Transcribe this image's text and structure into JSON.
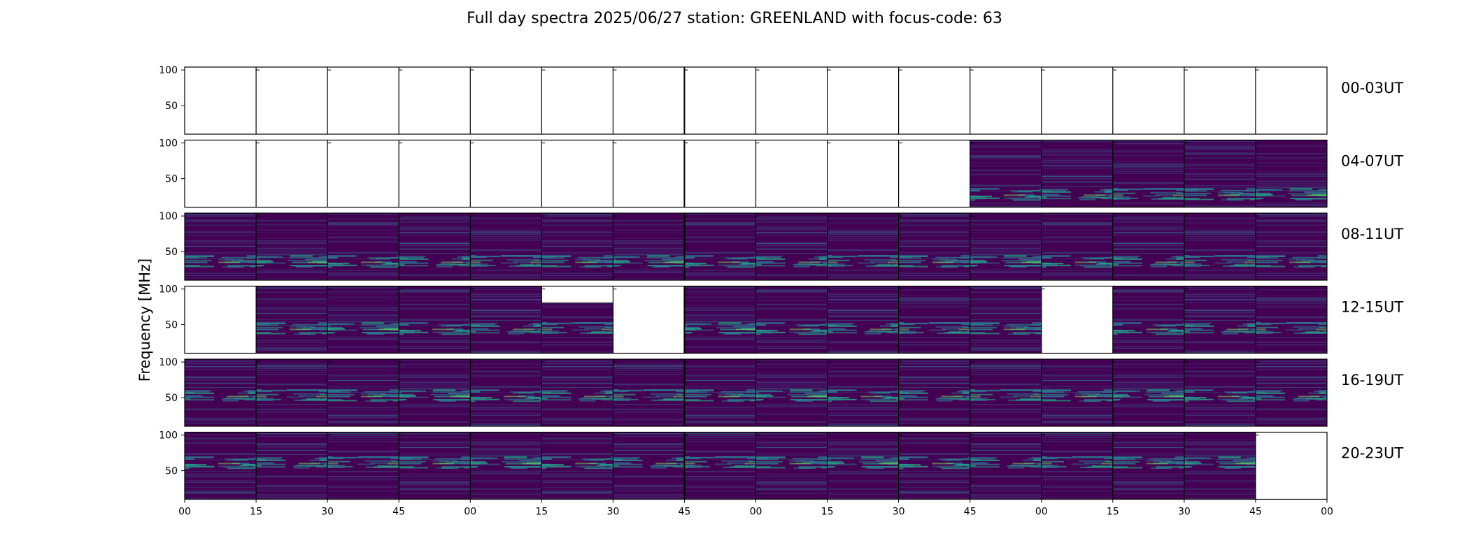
{
  "chart_data": {
    "type": "heatmap",
    "title": "Full day spectra 2025/06/27 station: GREENLAND with focus-code: 63",
    "ylabel": "Frequency [MHz]",
    "xlabel": "",
    "ylim": [
      10,
      104
    ],
    "yticks": [
      50,
      100
    ],
    "xticks": [
      "00",
      "15",
      "30",
      "45",
      "00",
      "15",
      "30",
      "45",
      "00",
      "15",
      "30",
      "45",
      "00",
      "15",
      "30",
      "45",
      "00"
    ],
    "colormap": "viridis",
    "colors": {
      "low": "#440154",
      "mid": "#2a788e",
      "high": "#22a884",
      "peak": "#7ad151"
    },
    "rows": [
      {
        "label": "00-03UT",
        "coverage": [
          0,
          0,
          0,
          0,
          0,
          0,
          0,
          0,
          0,
          0,
          0,
          0,
          0,
          0,
          0,
          0
        ]
      },
      {
        "label": "04-07UT",
        "coverage": [
          0,
          0,
          0,
          0,
          0,
          0,
          0,
          0,
          0,
          0,
          0,
          1,
          1,
          1,
          1,
          1
        ]
      },
      {
        "label": "08-11UT",
        "coverage": [
          1,
          1,
          1,
          1,
          1,
          1,
          1,
          1,
          1,
          1,
          1,
          1,
          1,
          1,
          1,
          1
        ]
      },
      {
        "label": "12-15UT",
        "coverage": [
          0,
          1,
          1,
          1,
          1,
          0.75,
          0,
          1,
          1,
          1,
          1,
          1,
          0,
          1,
          1,
          1
        ]
      },
      {
        "label": "16-19UT",
        "coverage": [
          1,
          1,
          1,
          1,
          1,
          1,
          1,
          1,
          1,
          1,
          1,
          1,
          1,
          1,
          1,
          1
        ]
      },
      {
        "label": "20-23UT",
        "coverage": [
          1,
          1,
          1,
          1,
          1,
          1,
          1,
          1,
          1,
          1,
          1,
          1,
          1,
          1,
          1,
          0
        ]
      }
    ]
  }
}
